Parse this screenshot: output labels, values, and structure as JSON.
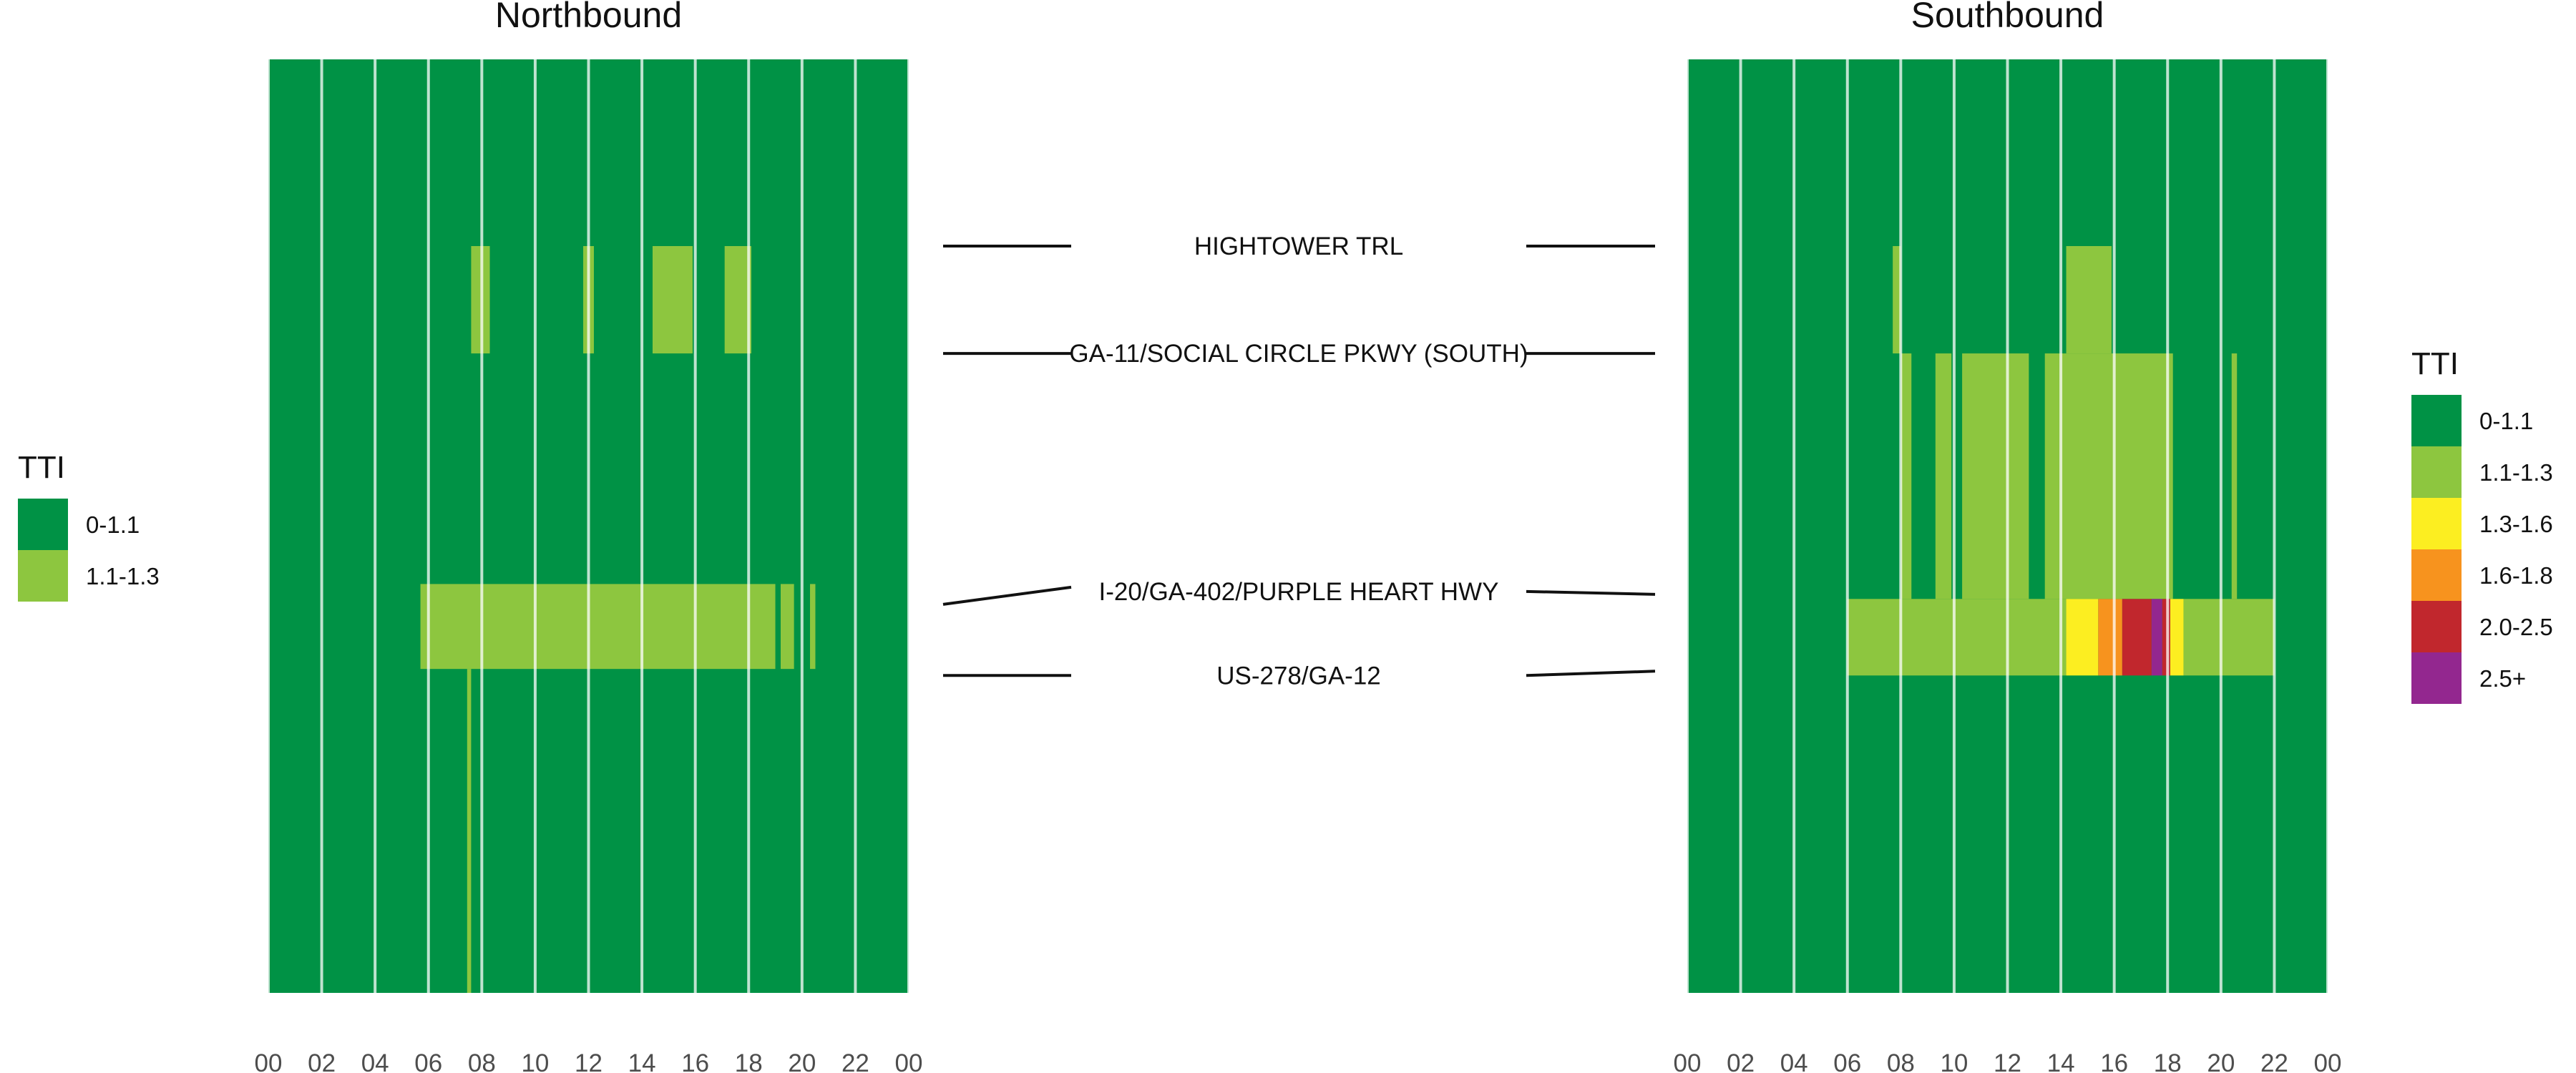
{
  "chart_data": {
    "type": "heatmap",
    "legend_title": "TTI",
    "tti_classes": [
      {
        "label": "0-1.1",
        "color": "#009245"
      },
      {
        "label": "1.1-1.3",
        "color": "#8DC63F"
      },
      {
        "label": "1.3-1.6",
        "color": "#FCEE21"
      },
      {
        "label": "1.6-1.8",
        "color": "#F7931E"
      },
      {
        "label": "2.0-2.5",
        "color": "#C1272D"
      },
      {
        "label": "2.5+",
        "color": "#93278F"
      }
    ],
    "x_ticks": [
      "00",
      "02",
      "04",
      "06",
      "08",
      "10",
      "12",
      "14",
      "16",
      "18",
      "20",
      "22",
      "00"
    ],
    "xlim_hours": [
      0,
      24
    ],
    "corridor_position": [
      0,
      1
    ],
    "road_labels": [
      {
        "name": "HIGHTOWER TRL",
        "position": 0.2
      },
      {
        "name": "GA-11/SOCIAL CIRCLE PKWY (SOUTH)",
        "position": 0.315
      },
      {
        "name": "I-20/GA-402/PURPLE HEART HWY",
        "position": 0.57
      },
      {
        "name": "US-278/GA-12",
        "position": 0.66
      }
    ],
    "panels": [
      {
        "title": "Northbound",
        "legend_classes": [
          0,
          1
        ],
        "background_class": 0,
        "cells": [
          {
            "class": 1,
            "hours": [
              7.6,
              8.3
            ],
            "position": [
              0.2,
              0.315
            ]
          },
          {
            "class": 1,
            "hours": [
              11.8,
              12.2
            ],
            "position": [
              0.2,
              0.315
            ]
          },
          {
            "class": 1,
            "hours": [
              14.4,
              15.9
            ],
            "position": [
              0.2,
              0.315
            ]
          },
          {
            "class": 1,
            "hours": [
              17.1,
              18.1
            ],
            "position": [
              0.2,
              0.315
            ]
          },
          {
            "class": 1,
            "hours": [
              5.7,
              19.0
            ],
            "position": [
              0.562,
              0.653
            ]
          },
          {
            "class": 1,
            "hours": [
              19.2,
              19.7
            ],
            "position": [
              0.562,
              0.653
            ]
          },
          {
            "class": 1,
            "hours": [
              20.3,
              20.5
            ],
            "position": [
              0.562,
              0.653
            ]
          },
          {
            "class": 1,
            "hours": [
              7.45,
              7.6
            ],
            "position": [
              0.653,
              1.0
            ]
          }
        ]
      },
      {
        "title": "Southbound",
        "legend_classes": [
          0,
          1,
          2,
          3,
          4,
          5
        ],
        "background_class": 0,
        "cells": [
          {
            "class": 1,
            "hours": [
              7.7,
              8.0
            ],
            "position": [
              0.2,
              0.315
            ]
          },
          {
            "class": 1,
            "hours": [
              14.2,
              15.9
            ],
            "position": [
              0.2,
              0.315
            ]
          },
          {
            "class": 1,
            "hours": [
              8.0,
              8.4
            ],
            "position": [
              0.315,
              0.578
            ]
          },
          {
            "class": 1,
            "hours": [
              9.3,
              9.9
            ],
            "position": [
              0.315,
              0.578
            ]
          },
          {
            "class": 1,
            "hours": [
              10.3,
              12.8
            ],
            "position": [
              0.315,
              0.578
            ]
          },
          {
            "class": 1,
            "hours": [
              13.4,
              18.2
            ],
            "position": [
              0.315,
              0.578
            ]
          },
          {
            "class": 1,
            "hours": [
              20.4,
              20.6
            ],
            "position": [
              0.315,
              0.578
            ]
          },
          {
            "class": 1,
            "hours": [
              6.0,
              14.2
            ],
            "position": [
              0.578,
              0.66
            ]
          },
          {
            "class": 2,
            "hours": [
              14.2,
              15.4
            ],
            "position": [
              0.578,
              0.66
            ]
          },
          {
            "class": 3,
            "hours": [
              15.4,
              16.3
            ],
            "position": [
              0.578,
              0.66
            ]
          },
          {
            "class": 4,
            "hours": [
              16.3,
              17.4
            ],
            "position": [
              0.578,
              0.66
            ]
          },
          {
            "class": 5,
            "hours": [
              17.4,
              17.8
            ],
            "position": [
              0.578,
              0.66
            ]
          },
          {
            "class": 4,
            "hours": [
              17.8,
              18.1
            ],
            "position": [
              0.578,
              0.66
            ]
          },
          {
            "class": 2,
            "hours": [
              18.1,
              18.6
            ],
            "position": [
              0.578,
              0.66
            ]
          },
          {
            "class": 1,
            "hours": [
              18.6,
              22.0
            ],
            "position": [
              0.578,
              0.66
            ]
          }
        ]
      }
    ]
  }
}
